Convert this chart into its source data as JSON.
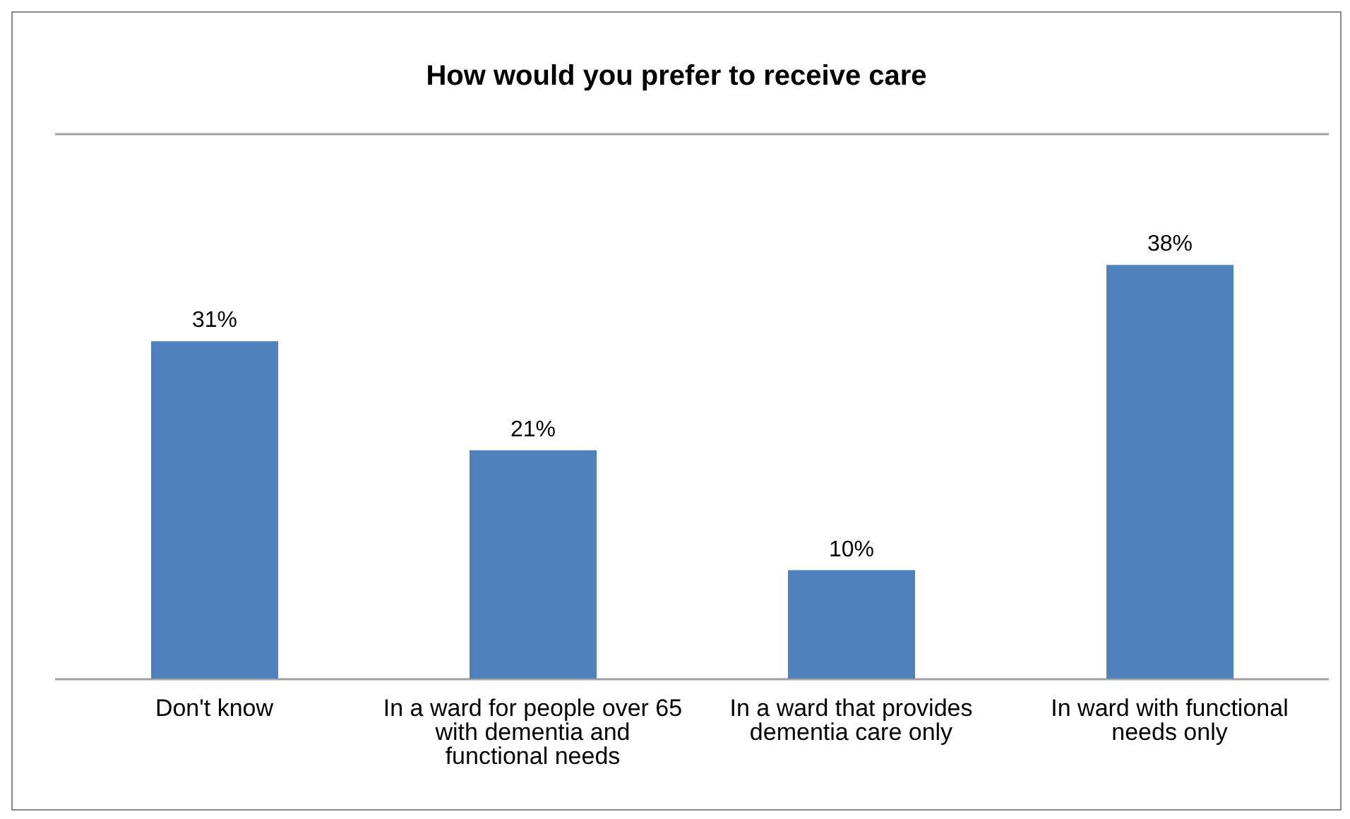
{
  "chart_data": {
    "type": "bar",
    "title": "How would you prefer to receive care",
    "categories": [
      "Don't know",
      "In a ward for people over 65 with dementia and functional needs",
      "In a ward that provides dementia care only",
      "In ward with functional needs only"
    ],
    "values": [
      31,
      21,
      10,
      38
    ],
    "value_labels": [
      "31%",
      "21%",
      "10%",
      "38%"
    ],
    "color": "#4f81bd",
    "ylim": [
      0,
      50
    ],
    "tick_labels": "x",
    "grid": "y"
  }
}
